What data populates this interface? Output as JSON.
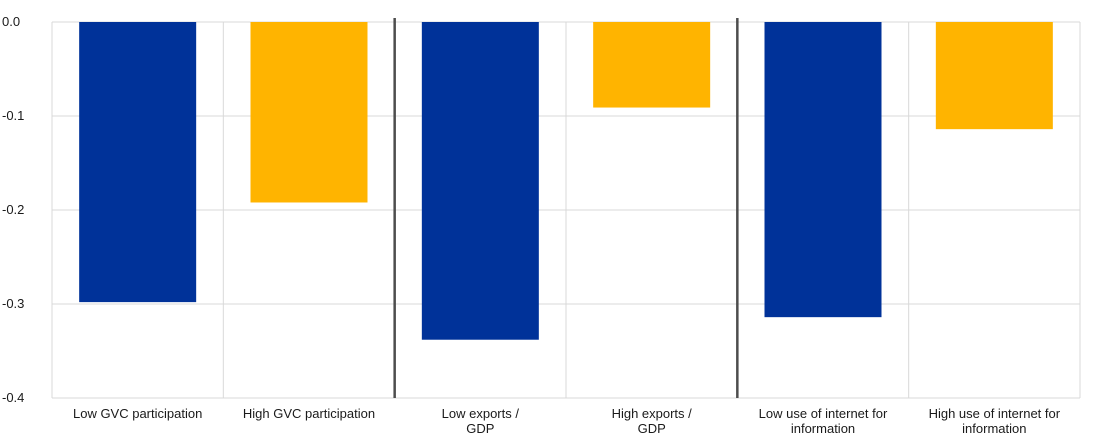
{
  "chart_data": {
    "type": "bar",
    "categories": [
      [
        "Low GVC participation"
      ],
      [
        "High GVC participation"
      ],
      [
        "Low exports /",
        "GDP"
      ],
      [
        "High exports /",
        "GDP"
      ],
      [
        "Low use of internet for",
        "information"
      ],
      [
        "High use of internet for",
        "information"
      ]
    ],
    "values": [
      -0.298,
      -0.192,
      -0.338,
      -0.091,
      -0.314,
      -0.114
    ],
    "bar_colors": [
      "#003299",
      "#FFB400",
      "#003299",
      "#FFB400",
      "#003299",
      "#FFB400"
    ],
    "ylim": [
      -0.4,
      0.0
    ],
    "yticks": [
      0.0,
      -0.1,
      -0.2,
      -0.3,
      -0.4
    ],
    "ytick_labels": [
      "0.0",
      "-0.1",
      "-0.2",
      "-0.3",
      "-0.4"
    ],
    "group_separators_after": [
      2,
      4
    ],
    "grid": true,
    "title": "",
    "xlabel": "",
    "ylabel": ""
  }
}
